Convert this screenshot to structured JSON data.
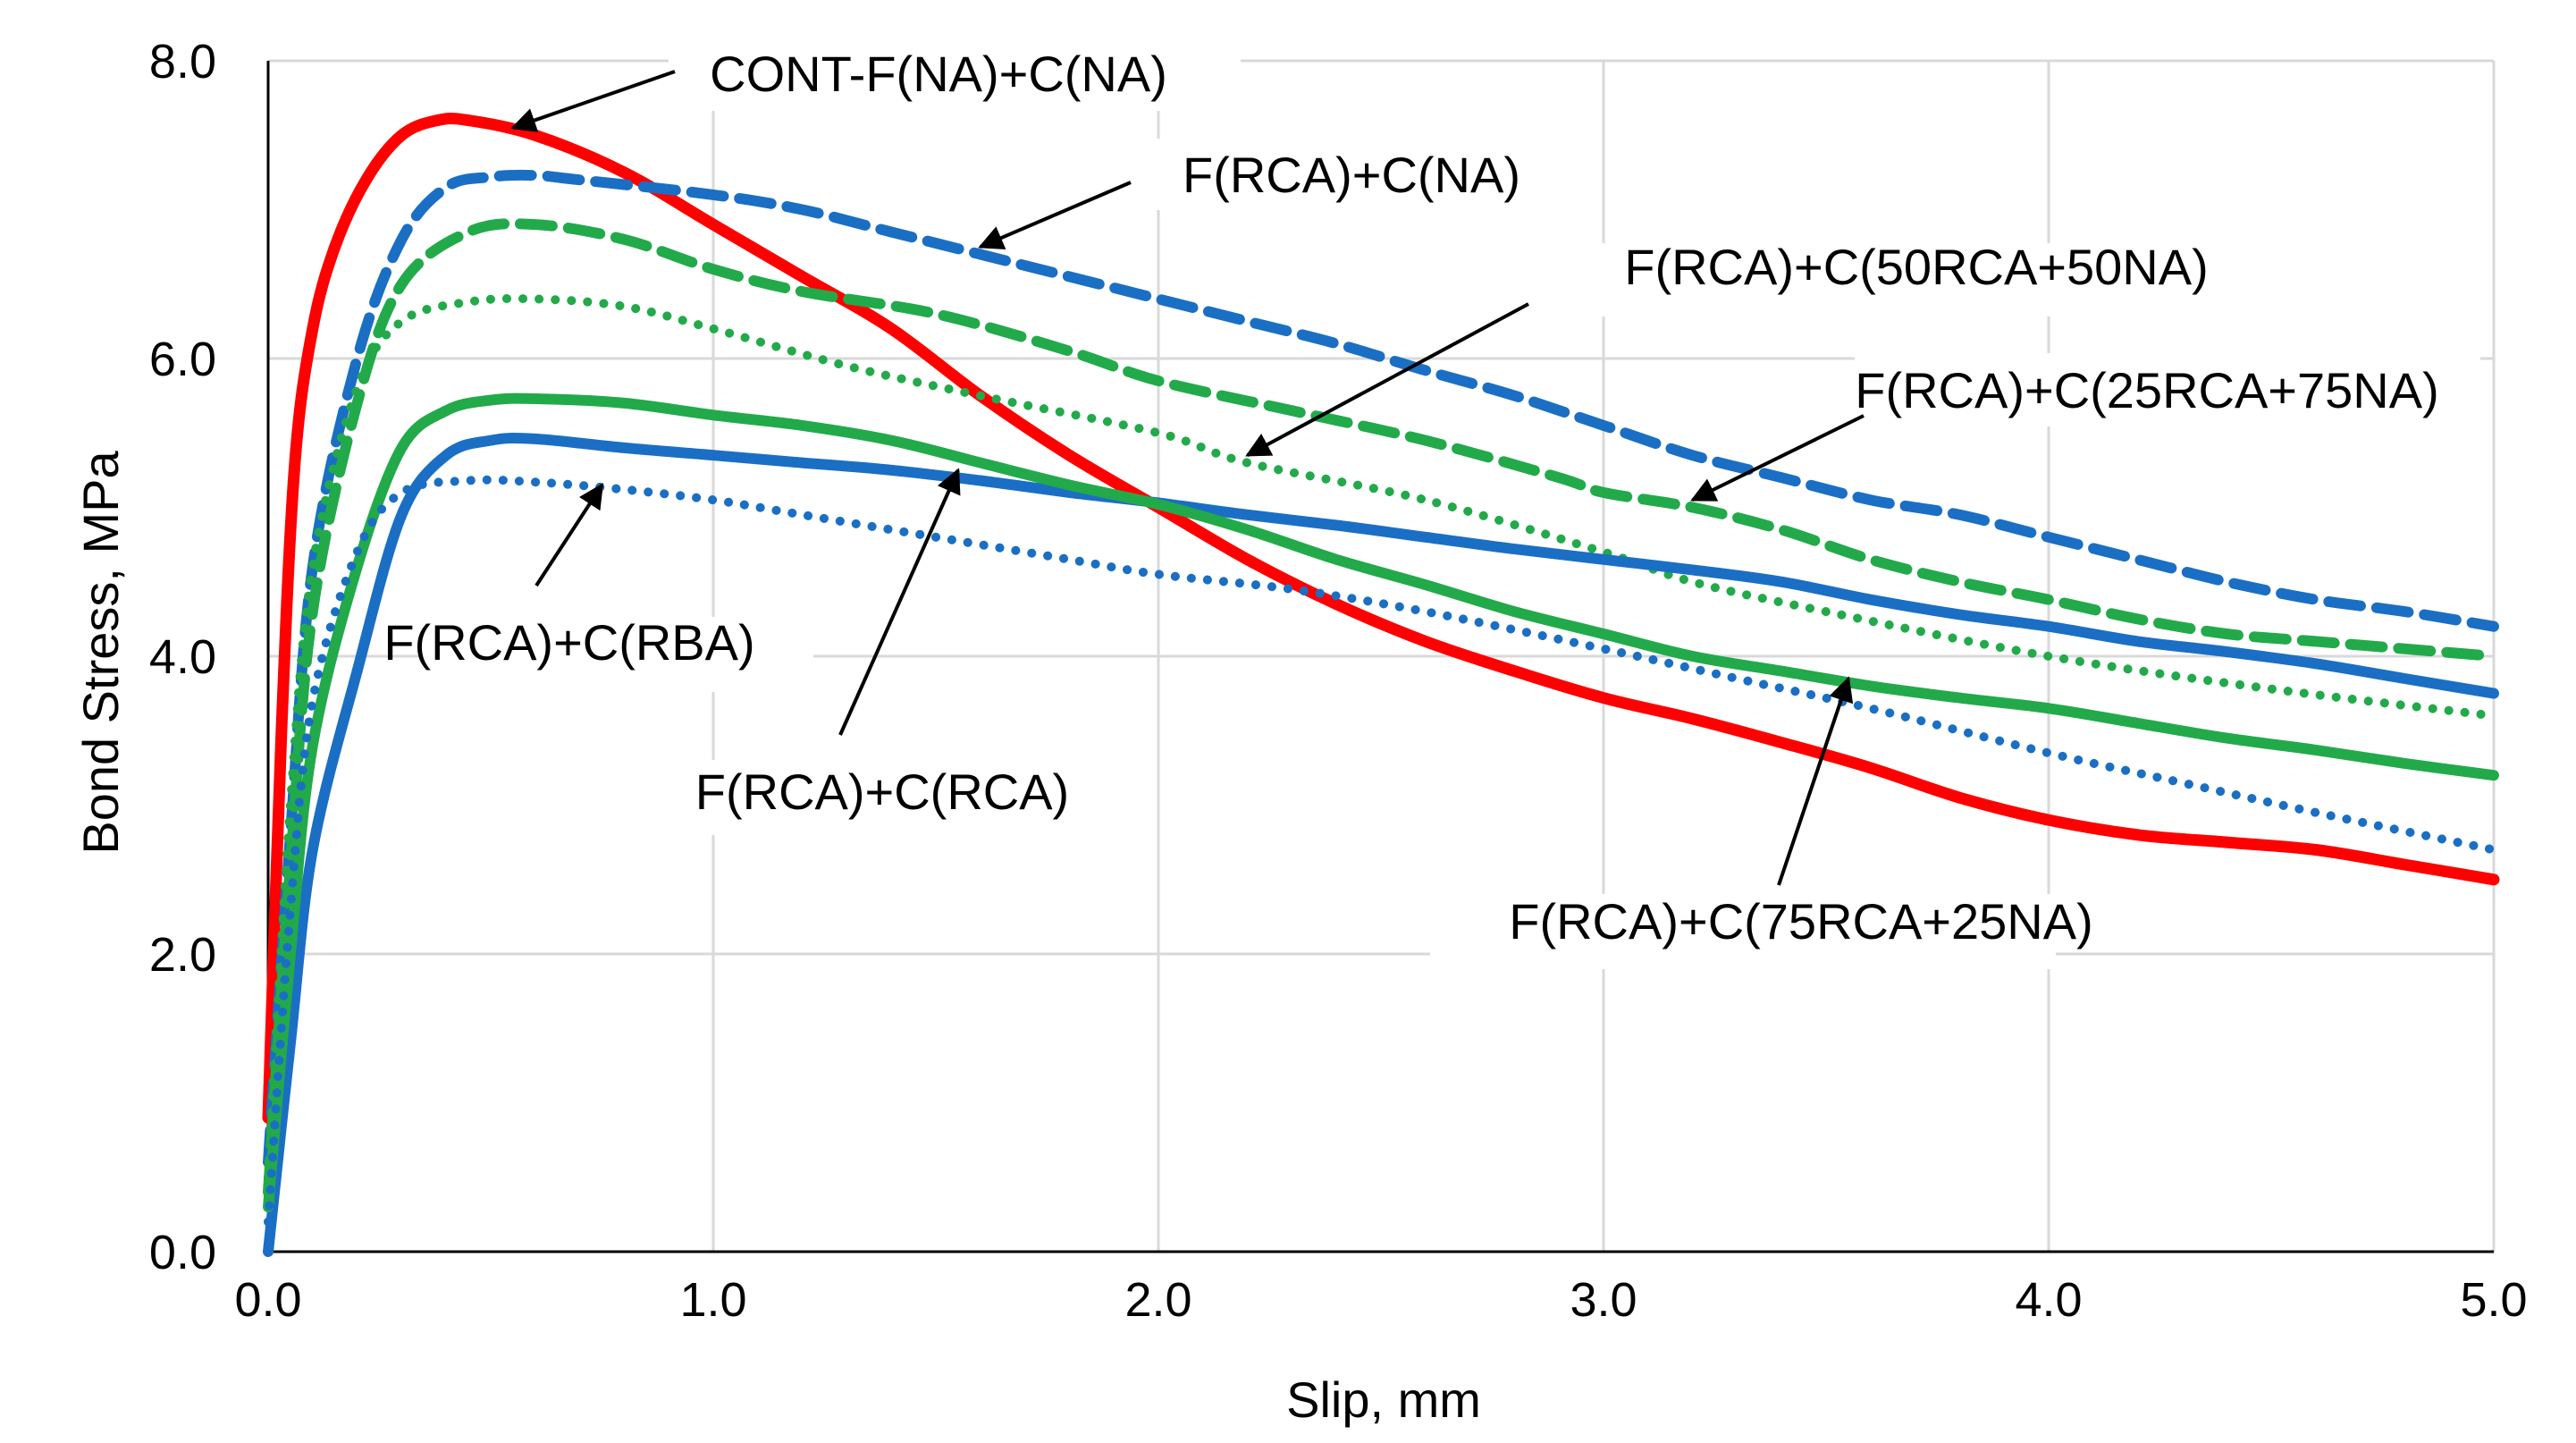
{
  "chart_data": {
    "type": "line",
    "title": "",
    "xlabel": "Slip, mm",
    "ylabel": "Bond Stress, MPa",
    "xlim": [
      0,
      5
    ],
    "ylim": [
      0,
      8
    ],
    "grid": true,
    "x_ticks": [
      "0.0",
      "1.0",
      "2.0",
      "3.0",
      "4.0",
      "5.0"
    ],
    "y_ticks": [
      "0.0",
      "2.0",
      "4.0",
      "6.0",
      "8.0"
    ],
    "series": [
      {
        "name": "CONT-F(NA)+C(NA)",
        "color": "#ff0000",
        "style": "solid",
        "points": [
          [
            0,
            0.9
          ],
          [
            0.03,
            3.5
          ],
          [
            0.06,
            5.3
          ],
          [
            0.1,
            6.2
          ],
          [
            0.15,
            6.75
          ],
          [
            0.22,
            7.2
          ],
          [
            0.3,
            7.5
          ],
          [
            0.38,
            7.6
          ],
          [
            0.45,
            7.6
          ],
          [
            0.6,
            7.5
          ],
          [
            0.8,
            7.25
          ],
          [
            1.0,
            6.9
          ],
          [
            1.2,
            6.55
          ],
          [
            1.4,
            6.2
          ],
          [
            1.6,
            5.75
          ],
          [
            1.8,
            5.35
          ],
          [
            2.0,
            5.0
          ],
          [
            2.2,
            4.65
          ],
          [
            2.4,
            4.35
          ],
          [
            2.6,
            4.1
          ],
          [
            2.8,
            3.9
          ],
          [
            3.0,
            3.72
          ],
          [
            3.2,
            3.58
          ],
          [
            3.4,
            3.42
          ],
          [
            3.6,
            3.25
          ],
          [
            3.8,
            3.05
          ],
          [
            4.0,
            2.9
          ],
          [
            4.2,
            2.8
          ],
          [
            4.4,
            2.75
          ],
          [
            4.6,
            2.7
          ],
          [
            4.8,
            2.6
          ],
          [
            5.0,
            2.5
          ]
        ]
      },
      {
        "name": "F(RCA)+C(NA)",
        "color": "#1a6fc4",
        "style": "dashed",
        "points": [
          [
            0,
            0.6
          ],
          [
            0.05,
            2.8
          ],
          [
            0.1,
            4.6
          ],
          [
            0.2,
            6.0
          ],
          [
            0.3,
            6.8
          ],
          [
            0.4,
            7.15
          ],
          [
            0.5,
            7.22
          ],
          [
            0.6,
            7.23
          ],
          [
            0.7,
            7.2
          ],
          [
            1.0,
            7.1
          ],
          [
            1.2,
            7.0
          ],
          [
            1.4,
            6.85
          ],
          [
            1.6,
            6.7
          ],
          [
            1.8,
            6.55
          ],
          [
            2.0,
            6.4
          ],
          [
            2.2,
            6.25
          ],
          [
            2.4,
            6.1
          ],
          [
            2.6,
            5.92
          ],
          [
            2.8,
            5.75
          ],
          [
            3.0,
            5.55
          ],
          [
            3.2,
            5.35
          ],
          [
            3.4,
            5.2
          ],
          [
            3.6,
            5.05
          ],
          [
            3.8,
            4.95
          ],
          [
            4.0,
            4.8
          ],
          [
            4.2,
            4.65
          ],
          [
            4.4,
            4.5
          ],
          [
            4.6,
            4.38
          ],
          [
            4.8,
            4.3
          ],
          [
            5.0,
            4.2
          ]
        ]
      },
      {
        "name": "F(RCA)+C(25RCA+75NA)",
        "color": "#22aa4a",
        "style": "dashed",
        "points": [
          [
            0,
            0.4
          ],
          [
            0.05,
            2.6
          ],
          [
            0.1,
            4.3
          ],
          [
            0.2,
            5.7
          ],
          [
            0.3,
            6.5
          ],
          [
            0.45,
            6.85
          ],
          [
            0.6,
            6.9
          ],
          [
            0.8,
            6.8
          ],
          [
            1.0,
            6.6
          ],
          [
            1.2,
            6.45
          ],
          [
            1.5,
            6.3
          ],
          [
            1.8,
            6.05
          ],
          [
            2.0,
            5.85
          ],
          [
            2.3,
            5.65
          ],
          [
            2.6,
            5.45
          ],
          [
            2.9,
            5.2
          ],
          [
            3.0,
            5.1
          ],
          [
            3.2,
            5.0
          ],
          [
            3.4,
            4.85
          ],
          [
            3.6,
            4.65
          ],
          [
            3.8,
            4.5
          ],
          [
            4.0,
            4.38
          ],
          [
            4.2,
            4.25
          ],
          [
            4.4,
            4.15
          ],
          [
            4.6,
            4.1
          ],
          [
            4.8,
            4.05
          ],
          [
            5.0,
            4.0
          ]
        ]
      },
      {
        "name": "F(RCA)+C(50RCA+50NA)",
        "color": "#22aa4a",
        "style": "dotted",
        "points": [
          [
            0,
            0.5
          ],
          [
            0.05,
            3.0
          ],
          [
            0.1,
            4.6
          ],
          [
            0.2,
            5.8
          ],
          [
            0.3,
            6.25
          ],
          [
            0.45,
            6.38
          ],
          [
            0.6,
            6.4
          ],
          [
            0.8,
            6.35
          ],
          [
            1.0,
            6.2
          ],
          [
            1.3,
            5.95
          ],
          [
            1.6,
            5.75
          ],
          [
            2.0,
            5.5
          ],
          [
            2.2,
            5.3
          ],
          [
            2.6,
            5.05
          ],
          [
            3.0,
            4.7
          ],
          [
            3.2,
            4.5
          ],
          [
            3.5,
            4.3
          ],
          [
            4.0,
            4.0
          ],
          [
            4.5,
            3.78
          ],
          [
            5.0,
            3.6
          ]
        ]
      },
      {
        "name": "F(RCA)+C(RCA)",
        "color": "#1a6fc4",
        "style": "solid",
        "points": [
          [
            0,
            0
          ],
          [
            0.05,
            1.4
          ],
          [
            0.1,
            2.7
          ],
          [
            0.2,
            3.9
          ],
          [
            0.3,
            4.95
          ],
          [
            0.4,
            5.35
          ],
          [
            0.5,
            5.45
          ],
          [
            0.6,
            5.46
          ],
          [
            0.8,
            5.4
          ],
          [
            1.0,
            5.35
          ],
          [
            1.2,
            5.3
          ],
          [
            1.4,
            5.25
          ],
          [
            1.6,
            5.18
          ],
          [
            1.8,
            5.1
          ],
          [
            2.0,
            5.03
          ],
          [
            2.2,
            4.95
          ],
          [
            2.4,
            4.88
          ],
          [
            2.6,
            4.8
          ],
          [
            2.8,
            4.72
          ],
          [
            3.0,
            4.65
          ],
          [
            3.2,
            4.58
          ],
          [
            3.4,
            4.5
          ],
          [
            3.6,
            4.38
          ],
          [
            3.8,
            4.28
          ],
          [
            4.0,
            4.2
          ],
          [
            4.2,
            4.1
          ],
          [
            4.4,
            4.03
          ],
          [
            4.6,
            3.95
          ],
          [
            4.8,
            3.85
          ],
          [
            5.0,
            3.75
          ]
        ]
      },
      {
        "name": "F(RCA)+C(75RCA+25NA)",
        "color": "#22aa4a",
        "style": "solid",
        "points": [
          [
            0,
            0.3
          ],
          [
            0.05,
            2.0
          ],
          [
            0.1,
            3.4
          ],
          [
            0.2,
            4.6
          ],
          [
            0.3,
            5.4
          ],
          [
            0.4,
            5.65
          ],
          [
            0.5,
            5.72
          ],
          [
            0.6,
            5.73
          ],
          [
            0.8,
            5.7
          ],
          [
            1.0,
            5.62
          ],
          [
            1.2,
            5.55
          ],
          [
            1.4,
            5.45
          ],
          [
            1.6,
            5.3
          ],
          [
            1.8,
            5.15
          ],
          [
            2.0,
            5.02
          ],
          [
            2.2,
            4.85
          ],
          [
            2.4,
            4.65
          ],
          [
            2.6,
            4.48
          ],
          [
            2.8,
            4.3
          ],
          [
            3.0,
            4.15
          ],
          [
            3.2,
            4.0
          ],
          [
            3.4,
            3.9
          ],
          [
            3.6,
            3.8
          ],
          [
            3.8,
            3.72
          ],
          [
            4.0,
            3.65
          ],
          [
            4.2,
            3.55
          ],
          [
            4.4,
            3.45
          ],
          [
            4.6,
            3.37
          ],
          [
            4.8,
            3.28
          ],
          [
            5.0,
            3.2
          ]
        ]
      },
      {
        "name": "F(RCA)+C(RBA)",
        "color": "#1a6fc4",
        "style": "dotted",
        "points": [
          [
            0,
            0.2
          ],
          [
            0.05,
            2.3
          ],
          [
            0.1,
            3.7
          ],
          [
            0.2,
            4.7
          ],
          [
            0.3,
            5.1
          ],
          [
            0.45,
            5.18
          ],
          [
            0.6,
            5.17
          ],
          [
            0.8,
            5.12
          ],
          [
            1.0,
            5.05
          ],
          [
            1.2,
            4.95
          ],
          [
            1.5,
            4.8
          ],
          [
            1.8,
            4.65
          ],
          [
            2.0,
            4.55
          ],
          [
            2.3,
            4.45
          ],
          [
            2.6,
            4.3
          ],
          [
            3.0,
            4.05
          ],
          [
            3.3,
            3.85
          ],
          [
            3.6,
            3.65
          ],
          [
            4.0,
            3.35
          ],
          [
            4.3,
            3.15
          ],
          [
            4.6,
            2.95
          ],
          [
            5.0,
            2.7
          ]
        ]
      }
    ],
    "annotations": [
      {
        "text": "CONT-F(NA)+C(NA)",
        "target": [
          0.55,
          7.55
        ]
      },
      {
        "text": "F(RCA)+C(NA)",
        "target": [
          1.6,
          6.75
        ]
      },
      {
        "text": "F(RCA)+C(50RCA+50NA)",
        "target": [
          2.2,
          5.35
        ]
      },
      {
        "text": "F(RCA)+C(25RCA+75NA)",
        "target": [
          3.2,
          5.05
        ]
      },
      {
        "text": "F(RCA)+C(RBA)",
        "target": [
          0.75,
          5.15
        ]
      },
      {
        "text": "F(RCA)+C(RCA)",
        "target": [
          1.55,
          5.25
        ]
      },
      {
        "text": "F(RCA)+C(75RCA+25NA)",
        "target": [
          3.55,
          3.85
        ]
      }
    ]
  }
}
